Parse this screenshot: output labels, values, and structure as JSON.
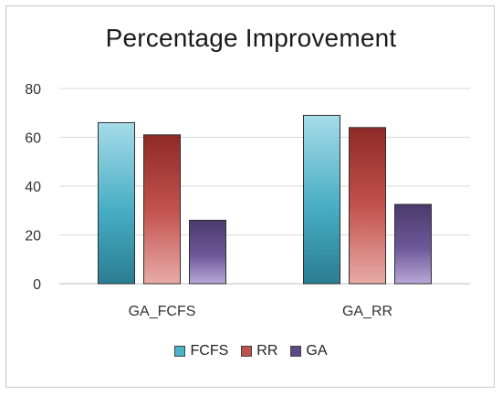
{
  "chart_data": {
    "type": "bar",
    "title": "Percentage Improvement",
    "categories": [
      "GA_FCFS",
      "GA_RR"
    ],
    "series": [
      {
        "name": "FCFS",
        "values": [
          66,
          69
        ],
        "color": "#4bb3c9"
      },
      {
        "name": "RR",
        "values": [
          61,
          64
        ],
        "color": "#c0504d"
      },
      {
        "name": "GA",
        "values": [
          26,
          32.5
        ],
        "color": "#5d4a85"
      }
    ],
    "yticks": [
      "0",
      "20",
      "40",
      "60",
      "80"
    ],
    "ylim": [
      0,
      80
    ],
    "grid": true,
    "legend": "bottom"
  }
}
